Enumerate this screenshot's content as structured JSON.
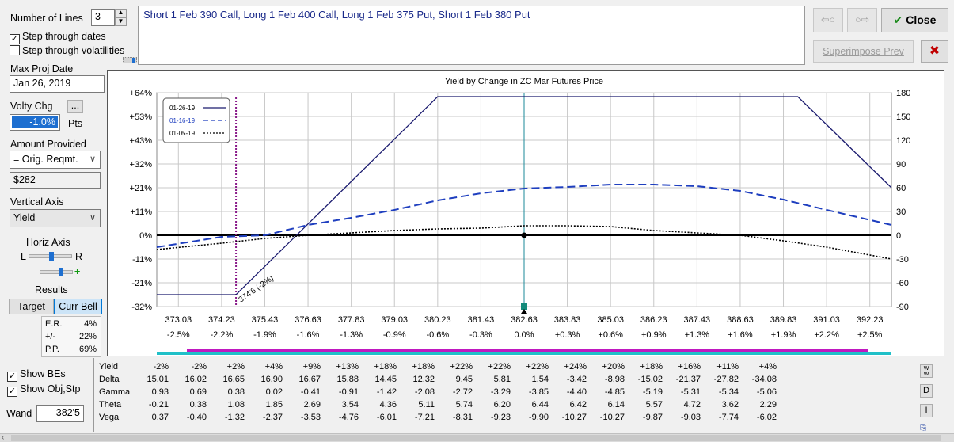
{
  "controls": {
    "number_of_lines_label": "Number of Lines",
    "number_of_lines_value": "3",
    "step_dates_label": "Step through dates",
    "step_dates_checked": true,
    "step_vols_label": "Step through volatilities",
    "step_vols_checked": false,
    "max_proj_date_label": "Max Proj Date",
    "max_proj_date_value": "Jan 26, 2019",
    "volty_chg_label": "Volty Chg",
    "volty_chg_btn": "...",
    "volty_chg_value": "-1.0%",
    "volty_units": "Pts",
    "amount_provided_label": "Amount Provided",
    "amount_provided_option": "= Orig. Reqmt.",
    "amount_value": "$282",
    "vertical_axis_label": "Vertical Axis",
    "vertical_axis_option": "Yield",
    "horiz_axis_label": "Horiz Axis",
    "horiz_left": "L",
    "horiz_right": "R",
    "minus_sign": "–",
    "plus_sign": "+",
    "results_label": "Results",
    "target_tab": "Target",
    "curr_bell_tab": "Curr Bell",
    "stats": [
      {
        "k": "E.R.",
        "v": "4%"
      },
      {
        "k": "+/-",
        "v": "22%"
      },
      {
        "k": "P.P.",
        "v": "69%"
      }
    ],
    "show_bes_label": "Show BEs",
    "show_bes_checked": true,
    "show_objstp_label": "Show Obj,Stp",
    "show_objstp_checked": true,
    "wand_label": "Wand",
    "wand_value": "382'5"
  },
  "strategy_text": "Short 1 Feb 390 Call, Long 1 Feb 400 Call, Long 1 Feb 375 Put, Short 1 Feb 380 Put",
  "buttons": {
    "back_arrow": "⇦○",
    "fwd_arrow": "○⇨",
    "close_label": "Close",
    "close_icon": "✔",
    "superimpose_label": "Superimpose Prev",
    "cancel_icon": "✖",
    "side_w": "W W",
    "side_d": "D",
    "side_i": "I"
  },
  "chart_data": {
    "type": "line",
    "title": "Yield by Change in ZC Mar Futures Price",
    "x": [
      373.03,
      374.23,
      375.43,
      376.63,
      377.83,
      379.03,
      380.23,
      381.43,
      382.63,
      383.83,
      385.03,
      386.23,
      387.43,
      388.63,
      389.83,
      391.03,
      392.23
    ],
    "x_tick_labels": [
      "373.03",
      "374.23",
      "375.43",
      "376.63",
      "377.83",
      "379.03",
      "380.23",
      "381.43",
      "382.63",
      "383.83",
      "385.03",
      "386.23",
      "387.43",
      "388.63",
      "389.83",
      "391.03",
      "392.23"
    ],
    "x_pct_labels": [
      "-2.5%",
      "-2.2%",
      "-1.9%",
      "-1.6%",
      "-1.3%",
      "-0.9%",
      "-0.6%",
      "-0.3%",
      "0.0%",
      "+0.3%",
      "+0.6%",
      "+0.9%",
      "+1.3%",
      "+1.6%",
      "+1.9%",
      "+2.2%",
      "+2.5%"
    ],
    "y_left_ticks": [
      "+64%",
      "+53%",
      "+43%",
      "+32%",
      "+21%",
      "+11%",
      "0%",
      "-11%",
      "-21%",
      "-32%"
    ],
    "y_right_ticks": [
      "180",
      "150",
      "120",
      "90",
      "60",
      "30",
      "0",
      "-30",
      "-60",
      "-90"
    ],
    "ylim": [
      -90,
      180
    ],
    "xlim": [
      372.43,
      392.83
    ],
    "grid": true,
    "legend_position": "top-left",
    "series": [
      {
        "name": "01-26-19",
        "style": "solid",
        "color": "#1a1a6e",
        "points": [
          [
            372.43,
            -75
          ],
          [
            374.63,
            -75
          ],
          [
            380.23,
            175
          ],
          [
            390.23,
            175
          ],
          [
            392.83,
            60
          ]
        ]
      },
      {
        "name": "01-16-19",
        "style": "dash",
        "color": "#1f3fbf",
        "points": [
          [
            372.43,
            -15
          ],
          [
            374.23,
            -2
          ],
          [
            375.43,
            0
          ],
          [
            376.63,
            13
          ],
          [
            377.83,
            22
          ],
          [
            379.03,
            32
          ],
          [
            380.23,
            44
          ],
          [
            381.43,
            53
          ],
          [
            382.63,
            59
          ],
          [
            383.83,
            61
          ],
          [
            385.03,
            64
          ],
          [
            386.23,
            64
          ],
          [
            387.43,
            62
          ],
          [
            388.63,
            56
          ],
          [
            389.83,
            45
          ],
          [
            391.03,
            32
          ],
          [
            392.83,
            13
          ]
        ]
      },
      {
        "name": "01-05-19",
        "style": "dot",
        "color": "#000000",
        "points": [
          [
            372.43,
            -18
          ],
          [
            374.23,
            -10
          ],
          [
            375.43,
            -4
          ],
          [
            376.63,
            0
          ],
          [
            377.83,
            3
          ],
          [
            379.03,
            6
          ],
          [
            380.23,
            8
          ],
          [
            381.43,
            9
          ],
          [
            382.63,
            12
          ],
          [
            383.83,
            12
          ],
          [
            385.03,
            11
          ],
          [
            386.23,
            6
          ],
          [
            387.43,
            3
          ],
          [
            388.63,
            0
          ],
          [
            389.83,
            -7
          ],
          [
            391.03,
            -15
          ],
          [
            392.83,
            -30
          ]
        ]
      }
    ],
    "annotation": "374'6 (-2%)",
    "current_price": 382.63,
    "breakeven_price": 374.63
  },
  "table": {
    "headers": [
      "Yield",
      "Delta",
      "Gamma",
      "Theta",
      "Vega"
    ],
    "rows": [
      [
        "-2%",
        "-2%",
        "+2%",
        "+4%",
        "+9%",
        "+13%",
        "+18%",
        "+18%",
        "+22%",
        "+22%",
        "+22%",
        "+24%",
        "+20%",
        "+18%",
        "+16%",
        "+11%",
        "+4%"
      ],
      [
        "15.01",
        "16.02",
        "16.65",
        "16.90",
        "16.67",
        "15.88",
        "14.45",
        "12.32",
        "9.45",
        "5.81",
        "1.54",
        "-3.42",
        "-8.98",
        "-15.02",
        "-21.37",
        "-27.82",
        "-34.08"
      ],
      [
        "0.93",
        "0.69",
        "0.38",
        "0.02",
        "-0.41",
        "-0.91",
        "-1.42",
        "-2.08",
        "-2.72",
        "-3.29",
        "-3.85",
        "-4.40",
        "-4.85",
        "-5.19",
        "-5.31",
        "-5.34",
        "-5.06"
      ],
      [
        "-0.21",
        "0.38",
        "1.08",
        "1.85",
        "2.69",
        "3.54",
        "4.36",
        "5.11",
        "5.74",
        "6.20",
        "6.44",
        "6.42",
        "6.14",
        "5.57",
        "4.72",
        "3.62",
        "2.29"
      ],
      [
        "0.37",
        "-0.40",
        "-1.32",
        "-2.37",
        "-3.53",
        "-4.76",
        "-6.01",
        "-7.21",
        "-8.31",
        "-9.23",
        "-9.90",
        "-10.27",
        "-10.27",
        "-9.87",
        "-9.03",
        "-7.74",
        "-6.02"
      ]
    ]
  }
}
